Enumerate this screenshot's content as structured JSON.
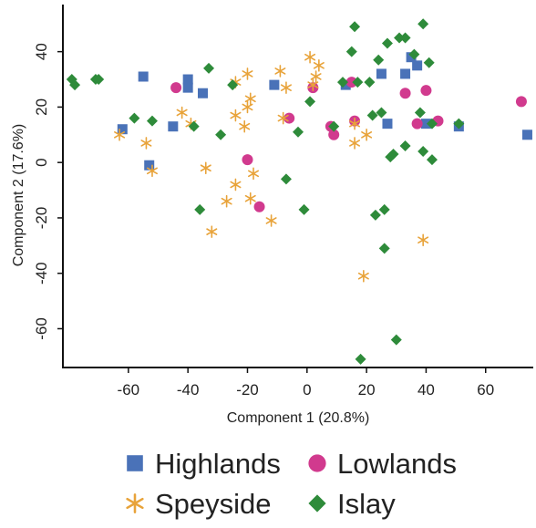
{
  "chart_data": {
    "type": "scatter",
    "title": "",
    "xlabel": "Component 1 (20.8%)",
    "ylabel": "Component 2 (17.6%)",
    "xlim": [
      -82,
      76
    ],
    "ylim": [
      -74,
      57
    ],
    "xticks": [
      -60,
      -40,
      -20,
      0,
      20,
      40,
      60
    ],
    "yticks": [
      -60,
      -40,
      -20,
      0,
      20,
      40
    ],
    "xtick_labels": [
      "-60",
      "-40",
      "-20",
      "0",
      "20",
      "40",
      "60"
    ],
    "ytick_labels": [
      "-60",
      "-40",
      "-20",
      "0",
      "20",
      "40"
    ],
    "grid": false,
    "legend_position": "bottom",
    "series": [
      {
        "name": "Highlands",
        "marker": "square",
        "color": "#4a72b8",
        "points": [
          [
            -55,
            31
          ],
          [
            -40,
            30
          ],
          [
            -40,
            27
          ],
          [
            -35,
            25
          ],
          [
            -45,
            13
          ],
          [
            -62,
            12
          ],
          [
            -53,
            -1
          ],
          [
            -11,
            28
          ],
          [
            13,
            28
          ],
          [
            25,
            32
          ],
          [
            33,
            32
          ],
          [
            35,
            38
          ],
          [
            37,
            35
          ],
          [
            40,
            14
          ],
          [
            27,
            14
          ],
          [
            51,
            13
          ],
          [
            74,
            10
          ]
        ]
      },
      {
        "name": "Lowlands",
        "marker": "circle",
        "color": "#d13a8e",
        "points": [
          [
            -44,
            27
          ],
          [
            -20,
            1
          ],
          [
            -16,
            -16
          ],
          [
            -6,
            16
          ],
          [
            2,
            27
          ],
          [
            8,
            13
          ],
          [
            9,
            10
          ],
          [
            16,
            15
          ],
          [
            33,
            25
          ],
          [
            40,
            26
          ],
          [
            37,
            14
          ],
          [
            44,
            15
          ],
          [
            72,
            22
          ],
          [
            15,
            29
          ]
        ]
      },
      {
        "name": "Speyside",
        "marker": "star",
        "color": "#e8a33a",
        "points": [
          [
            -63,
            10
          ],
          [
            -54,
            7
          ],
          [
            -52,
            -3
          ],
          [
            -42,
            18
          ],
          [
            -39,
            14
          ],
          [
            -34,
            -2
          ],
          [
            -32,
            -25
          ],
          [
            -27,
            -14
          ],
          [
            -24,
            17
          ],
          [
            -24,
            -8
          ],
          [
            -24,
            29
          ],
          [
            -21,
            13
          ],
          [
            -20,
            32
          ],
          [
            -20,
            20
          ],
          [
            -19,
            23
          ],
          [
            -19,
            -13
          ],
          [
            -18,
            -4
          ],
          [
            -12,
            -21
          ],
          [
            -9,
            33
          ],
          [
            -8,
            16
          ],
          [
            -7,
            27
          ],
          [
            1,
            38
          ],
          [
            2,
            28
          ],
          [
            3,
            31
          ],
          [
            4,
            35
          ],
          [
            16,
            7
          ],
          [
            16,
            14
          ],
          [
            20,
            10
          ],
          [
            19,
            -41
          ],
          [
            39,
            -28
          ]
        ]
      },
      {
        "name": "Islay",
        "marker": "diamond",
        "color": "#2e8b3a",
        "points": [
          [
            -79,
            30
          ],
          [
            -78,
            28
          ],
          [
            -71,
            30
          ],
          [
            -70,
            30
          ],
          [
            -58,
            16
          ],
          [
            -52,
            15
          ],
          [
            -38,
            13
          ],
          [
            -33,
            34
          ],
          [
            -29,
            10
          ],
          [
            -25,
            28
          ],
          [
            -36,
            -17
          ],
          [
            -7,
            -6
          ],
          [
            -3,
            11
          ],
          [
            -1,
            -17
          ],
          [
            1,
            22
          ],
          [
            9,
            13
          ],
          [
            12,
            29
          ],
          [
            16,
            49
          ],
          [
            17,
            29
          ],
          [
            18,
            -71
          ],
          [
            22,
            17
          ],
          [
            21,
            29
          ],
          [
            24,
            37
          ],
          [
            25,
            18
          ],
          [
            26,
            -17
          ],
          [
            23,
            -19
          ],
          [
            26,
            -31
          ],
          [
            27,
            43
          ],
          [
            28,
            2
          ],
          [
            29,
            3
          ],
          [
            30,
            -64
          ],
          [
            31,
            45
          ],
          [
            33,
            45
          ],
          [
            33,
            6
          ],
          [
            36,
            39
          ],
          [
            38,
            18
          ],
          [
            39,
            50
          ],
          [
            39,
            4
          ],
          [
            41,
            36
          ],
          [
            42,
            1
          ],
          [
            42,
            14
          ],
          [
            51,
            14
          ],
          [
            15,
            40
          ]
        ]
      }
    ]
  }
}
